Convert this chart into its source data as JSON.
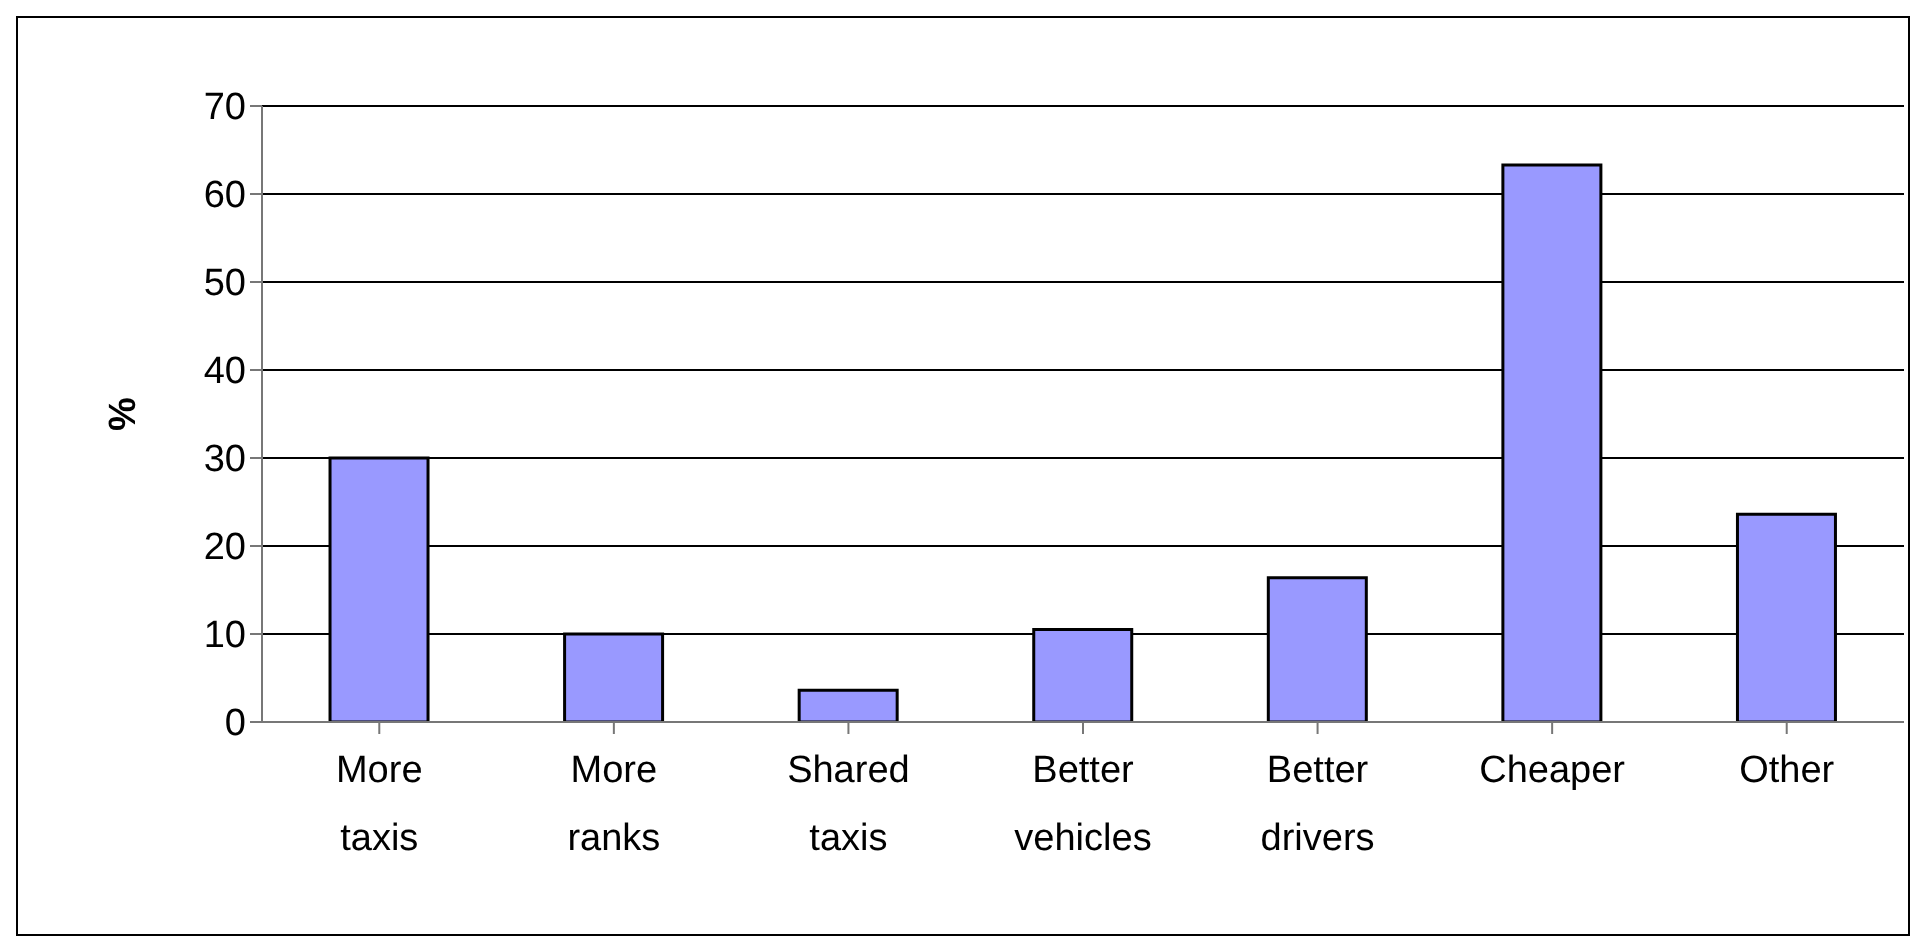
{
  "chart_data": {
    "type": "bar",
    "ylabel": "%",
    "categories": [
      "More taxis",
      "More ranks",
      "Shared taxis",
      "Better vehicles",
      "Better drivers",
      "Cheaper",
      "Other"
    ],
    "values": [
      30,
      10,
      3.6,
      10.5,
      16.4,
      63.3,
      23.6
    ],
    "color": "#9999ff",
    "ylim": [
      0,
      70
    ],
    "yticks": [
      0,
      10,
      20,
      30,
      40,
      50,
      60,
      70
    ],
    "grid": "y"
  }
}
